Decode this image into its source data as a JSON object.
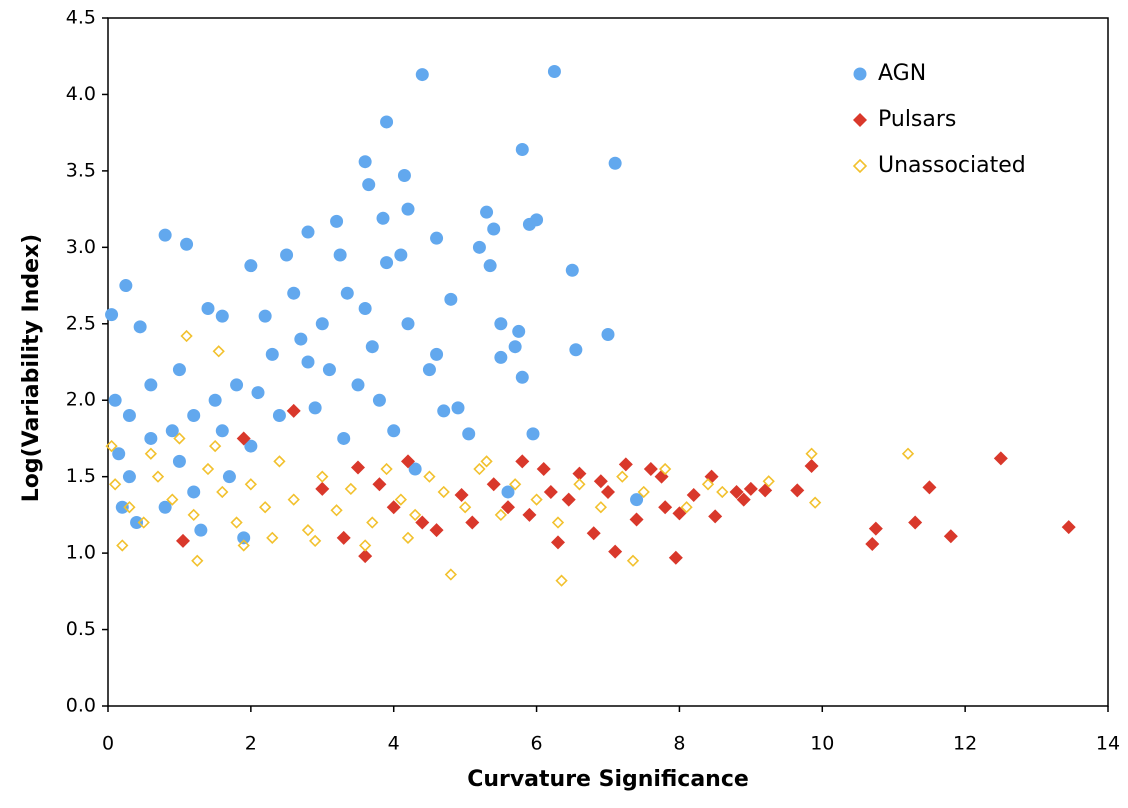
{
  "chart_data": {
    "type": "scatter",
    "x_label": "Curvature Significance",
    "y_label": "Log(Variability Index)",
    "xlim": [
      0,
      14
    ],
    "ylim": [
      0,
      4.5
    ],
    "xticks": [
      0,
      2,
      4,
      6,
      8,
      10,
      12,
      14
    ],
    "yticks": [
      {
        "value": 0,
        "label": "0.0"
      },
      0.5,
      {
        "value": 1,
        "label": "1.0"
      },
      1.5,
      {
        "value": 2,
        "label": "2.0"
      },
      2.5,
      {
        "value": 3,
        "label": "3.0"
      },
      3.5,
      {
        "value": 4,
        "label": "4.0"
      },
      4.5
    ],
    "legend": "top-right",
    "series": [
      {
        "name": "AGN",
        "color": "#62a8ee",
        "marker": "circle",
        "x": [
          4.4,
          6.25,
          3.9,
          5.8,
          7.1,
          3.6,
          3.65,
          4.15,
          4.2,
          3.2,
          5.3,
          5.9,
          6,
          3.85,
          0.8,
          1.1,
          2.8,
          4.6,
          5.4,
          5.2,
          5.35,
          6.5,
          3.25,
          3.9,
          4.1,
          2.5,
          2.0,
          0.25,
          0.05,
          0.45,
          4.8,
          7,
          6.55,
          5.75,
          5.5,
          5.7,
          5.5,
          5.8,
          4.5,
          4.9,
          5.05,
          5.95,
          4.7,
          3.35,
          3.6,
          3.0,
          2.7,
          2.3,
          1.8,
          1.5,
          1.2,
          0.9,
          0.6,
          0.3,
          0.1,
          1.0,
          1.4,
          1.6,
          2.2,
          2.6,
          3.1,
          3.5,
          3.8,
          4.0,
          2.0,
          1.7,
          1.2,
          0.8,
          0.4,
          0.2,
          1.0,
          2.4,
          2.9,
          3.3,
          1.9,
          1.3,
          0.3,
          7.4,
          5.6,
          4.3,
          2.1,
          1.6,
          2.8,
          3.7,
          4.2,
          4.6,
          0.6,
          0.15
        ],
        "y": [
          4.13,
          4.15,
          3.82,
          3.64,
          3.55,
          3.56,
          3.41,
          3.47,
          3.25,
          3.17,
          3.23,
          3.15,
          3.18,
          3.19,
          3.08,
          3.02,
          3.1,
          3.06,
          3.12,
          3.0,
          2.88,
          2.85,
          2.95,
          2.9,
          2.95,
          2.95,
          2.88,
          2.75,
          2.56,
          2.48,
          2.66,
          2.43,
          2.33,
          2.45,
          2.5,
          2.35,
          2.28,
          2.15,
          2.2,
          1.95,
          1.78,
          1.78,
          1.93,
          2.7,
          2.6,
          2.5,
          2.4,
          2.3,
          2.1,
          2.0,
          1.9,
          1.8,
          1.75,
          1.9,
          2.0,
          2.2,
          2.6,
          2.55,
          2.55,
          2.7,
          2.2,
          2.1,
          2.0,
          1.8,
          1.7,
          1.5,
          1.4,
          1.3,
          1.2,
          1.3,
          1.6,
          1.9,
          1.95,
          1.75,
          1.1,
          1.15,
          1.5,
          1.35,
          1.4,
          1.55,
          2.05,
          1.8,
          2.25,
          2.35,
          2.5,
          2.3,
          2.1,
          1.65
        ]
      },
      {
        "name": "Pulsars",
        "color": "#d9382b",
        "marker": "diamond",
        "x": [
          13.45,
          12.5,
          11.8,
          11.5,
          11.3,
          10.7,
          10.75,
          9.85,
          9.65,
          9.2,
          9.0,
          8.8,
          8.5,
          8.45,
          8.2,
          8.0,
          7.95,
          7.75,
          7.6,
          7.4,
          7.25,
          7.1,
          7.0,
          6.8,
          6.6,
          6.3,
          6.2,
          6.1,
          5.8,
          5.6,
          5.4,
          5.1,
          4.95,
          4.6,
          4.2,
          4.0,
          3.8,
          3.6,
          3.5,
          3.3,
          2.6,
          1.9,
          1.05,
          3.0,
          8.9,
          6.9,
          5.9,
          7.8,
          4.4,
          6.45
        ],
        "y": [
          1.17,
          1.62,
          1.11,
          1.43,
          1.2,
          1.06,
          1.16,
          1.57,
          1.41,
          1.41,
          1.42,
          1.4,
          1.24,
          1.5,
          1.38,
          1.26,
          0.97,
          1.5,
          1.55,
          1.22,
          1.58,
          1.01,
          1.4,
          1.13,
          1.52,
          1.07,
          1.4,
          1.55,
          1.6,
          1.3,
          1.45,
          1.2,
          1.38,
          1.15,
          1.6,
          1.3,
          1.45,
          0.98,
          1.56,
          1.1,
          1.93,
          1.75,
          1.08,
          1.42,
          1.35,
          1.47,
          1.25,
          1.3,
          1.2,
          1.35
        ]
      },
      {
        "name": "Unassociated",
        "color": "#f2c12e",
        "marker": "open-diamond",
        "x": [
          11.2,
          9.9,
          9.85,
          9.25,
          8.6,
          7.35,
          6.35,
          4.8,
          1.25,
          1.1,
          1.55,
          0.1,
          0.3,
          0.5,
          0.7,
          0.9,
          1.2,
          1.4,
          1.6,
          1.8,
          2.0,
          2.2,
          2.4,
          2.6,
          2.8,
          3.0,
          3.2,
          3.4,
          3.7,
          3.9,
          4.1,
          4.3,
          4.5,
          4.7,
          5.0,
          5.2,
          5.5,
          5.7,
          6.0,
          6.3,
          6.6,
          6.9,
          7.2,
          7.5,
          7.8,
          8.1,
          8.4,
          0.2,
          0.05,
          0.6,
          1.0,
          1.9,
          2.3,
          3.6,
          5.3,
          2.9,
          4.2,
          1.5
        ],
        "y": [
          1.65,
          1.33,
          1.65,
          1.47,
          1.4,
          0.95,
          0.82,
          0.86,
          0.95,
          2.42,
          2.32,
          1.45,
          1.3,
          1.2,
          1.5,
          1.35,
          1.25,
          1.55,
          1.4,
          1.2,
          1.45,
          1.3,
          1.6,
          1.35,
          1.15,
          1.5,
          1.28,
          1.42,
          1.2,
          1.55,
          1.35,
          1.25,
          1.5,
          1.4,
          1.3,
          1.55,
          1.25,
          1.45,
          1.35,
          1.2,
          1.45,
          1.3,
          1.5,
          1.4,
          1.55,
          1.3,
          1.45,
          1.05,
          1.7,
          1.65,
          1.75,
          1.05,
          1.1,
          1.05,
          1.6,
          1.08,
          1.1,
          1.7
        ]
      }
    ]
  }
}
